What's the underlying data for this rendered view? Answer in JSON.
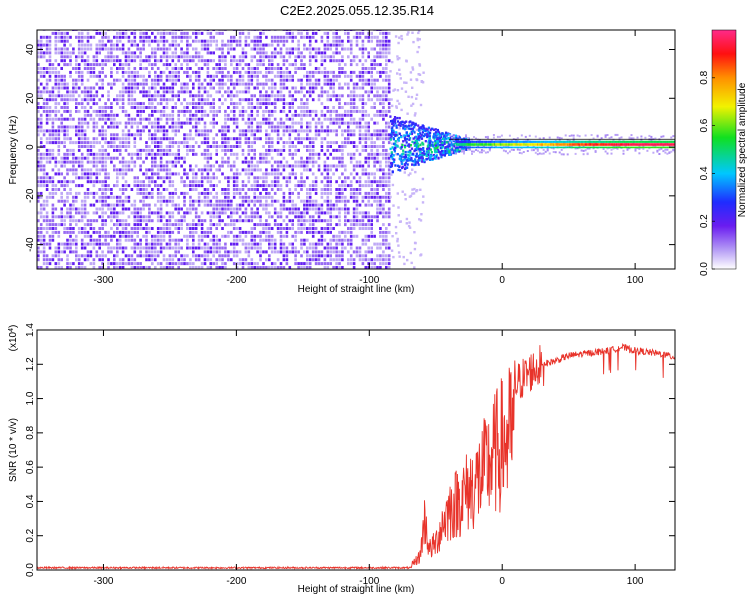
{
  "figure_title": "C2E2.2025.055.12.35.R14",
  "colors": {
    "snr_line": "#e8332a",
    "spectrogram_noise": "#7a1ce8",
    "spectrogram_signal": "#ff2020"
  },
  "chart_data": [
    {
      "type": "heatmap",
      "title": "",
      "xlabel": "Height of straight line (km)",
      "ylabel": "Frequency (Hz)",
      "xlim": [
        -350,
        130
      ],
      "ylim": [
        -50,
        48
      ],
      "xticks": [
        -300,
        -200,
        -100,
        0,
        100
      ],
      "yticks": [
        -40,
        -20,
        0,
        20,
        40
      ],
      "colorbar": {
        "label": "Normalized spectral amplitude",
        "range": [
          0.0,
          1.0
        ],
        "ticks": [
          "0.0",
          "0.2",
          "0.4",
          "0.6",
          "0.8"
        ],
        "colormap": "rainbow (violet-blue-cyan-green-yellow-red-magenta)"
      },
      "regions": [
        {
          "x": [
            -350,
            -85
          ],
          "description": "broadband noise across all frequencies",
          "amplitude": [
            0.0,
            0.1
          ]
        },
        {
          "x": [
            -85,
            -30
          ],
          "frequency": [
            -10,
            10
          ],
          "amplitude": [
            0.1,
            0.5
          ]
        },
        {
          "x": [
            -30,
            130
          ],
          "frequency": [
            0,
            3
          ],
          "amplitude": [
            0.5,
            0.95
          ]
        }
      ]
    },
    {
      "type": "line",
      "title": "",
      "xlabel": "Height of straight line (km)",
      "ylabel": "SNR (10 * v/v)",
      "yscale_label": "(x10",
      "yscale_exp": "4",
      "yscale_close": ")",
      "xlim": [
        -350,
        130
      ],
      "ylim": [
        0,
        1.4
      ],
      "xticks": [
        -300,
        -200,
        -100,
        0,
        100
      ],
      "yticks": [
        "0.0",
        "0.2",
        "0.4",
        "0.6",
        "0.8",
        "1.0",
        "1.2",
        "1.4"
      ],
      "series": [
        {
          "x": [
            -350,
            -100,
            -70,
            -62,
            -58,
            -55,
            -50,
            -45,
            -40,
            -35,
            -30,
            -25,
            -20,
            -15,
            -10,
            -5,
            0,
            5,
            10,
            20,
            30,
            40,
            50,
            60,
            70,
            80,
            90,
            100,
            110,
            120,
            130
          ],
          "y": [
            0.01,
            0.01,
            0.02,
            0.1,
            0.4,
            0.15,
            0.2,
            0.35,
            0.45,
            0.5,
            0.55,
            0.6,
            0.65,
            0.72,
            0.8,
            0.88,
            0.95,
            1.0,
            1.08,
            1.15,
            1.2,
            1.22,
            1.25,
            1.26,
            1.27,
            1.28,
            1.3,
            1.28,
            1.27,
            1.26,
            1.24
          ]
        }
      ]
    }
  ]
}
